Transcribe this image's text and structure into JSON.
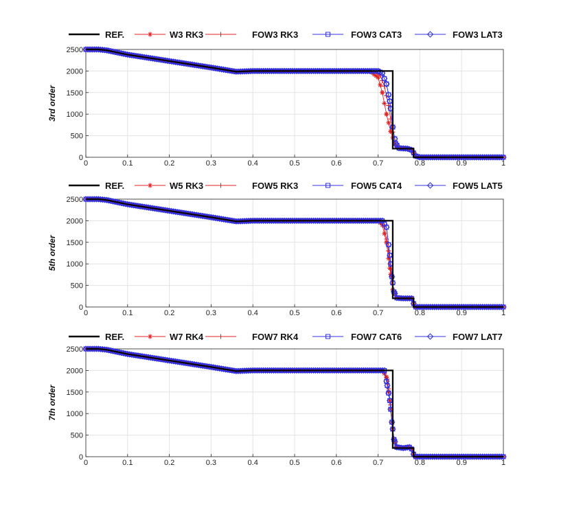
{
  "chart_data": [
    {
      "type": "line",
      "ylabel": "3rd order",
      "xlim": [
        0,
        1
      ],
      "ylim": [
        0,
        2500
      ],
      "xticks": [
        "0",
        "0.1",
        "0.2",
        "0.3",
        "0.4",
        "0.5",
        "0.6",
        "0.7",
        "0.8",
        "0.9",
        "1"
      ],
      "yticks": [
        "0",
        "500",
        "1000",
        "1500",
        "2000",
        "2500"
      ],
      "grid": true,
      "legend": "top, horizontal",
      "series": [
        {
          "name": "REF.",
          "color": "#000000",
          "marker": "none",
          "x": [
            0,
            0.03,
            0.05,
            0.1,
            0.2,
            0.3,
            0.36,
            0.4,
            0.6,
            0.735,
            0.735,
            0.785,
            0.785,
            1
          ],
          "y": [
            2500,
            2500,
            2480,
            2380,
            2230,
            2080,
            1985,
            2000,
            2000,
            2000,
            200,
            200,
            0,
            0
          ]
        },
        {
          "name": "W3 RK3",
          "color": "#e02020",
          "marker": "asterisk",
          "x": [
            0,
            0.03,
            0.05,
            0.1,
            0.2,
            0.3,
            0.36,
            0.4,
            0.6,
            0.68,
            0.7,
            0.71,
            0.72,
            0.73,
            0.74,
            0.75,
            0.77,
            0.78,
            0.79,
            0.8,
            1
          ],
          "y": [
            2500,
            2500,
            2480,
            2380,
            2230,
            2080,
            1985,
            2000,
            2000,
            2000,
            1850,
            1500,
            1000,
            600,
            300,
            210,
            200,
            170,
            30,
            0,
            0
          ]
        },
        {
          "name": "FOW3 RK3",
          "color": "#e02020",
          "marker": "plus",
          "x": [
            0,
            0.03,
            0.05,
            0.1,
            0.2,
            0.3,
            0.36,
            0.4,
            0.6,
            0.69,
            0.705,
            0.715,
            0.725,
            0.733,
            0.74,
            0.75,
            0.77,
            0.78,
            0.79,
            0.8,
            1
          ],
          "y": [
            2500,
            2500,
            2480,
            2380,
            2230,
            2080,
            1985,
            2000,
            2000,
            2000,
            1900,
            1650,
            1200,
            700,
            300,
            210,
            200,
            170,
            30,
            0,
            0
          ]
        },
        {
          "name": "FOW3 CAT3",
          "color": "#3030e0",
          "marker": "square",
          "x": [
            0,
            0.03,
            0.05,
            0.1,
            0.2,
            0.3,
            0.36,
            0.4,
            0.6,
            0.7,
            0.71,
            0.72,
            0.728,
            0.735,
            0.742,
            0.75,
            0.77,
            0.78,
            0.79,
            0.8,
            1
          ],
          "y": [
            2500,
            2500,
            2480,
            2380,
            2230,
            2080,
            1985,
            2000,
            2000,
            2000,
            1950,
            1700,
            1300,
            700,
            320,
            210,
            200,
            170,
            30,
            0,
            0
          ]
        },
        {
          "name": "FOW3 LAT3",
          "color": "#3030e0",
          "marker": "diamond",
          "x": [
            0,
            0.03,
            0.05,
            0.1,
            0.2,
            0.3,
            0.36,
            0.4,
            0.6,
            0.7,
            0.71,
            0.72,
            0.728,
            0.735,
            0.742,
            0.75,
            0.77,
            0.78,
            0.79,
            0.8,
            1
          ],
          "y": [
            2500,
            2500,
            2480,
            2380,
            2230,
            2080,
            1985,
            2000,
            2000,
            2000,
            1950,
            1700,
            1300,
            700,
            320,
            210,
            200,
            170,
            30,
            0,
            0
          ]
        }
      ]
    },
    {
      "type": "line",
      "ylabel": "5th order",
      "xlim": [
        0,
        1
      ],
      "ylim": [
        0,
        2500
      ],
      "xticks": [
        "0",
        "0.1",
        "0.2",
        "0.3",
        "0.4",
        "0.5",
        "0.6",
        "0.7",
        "0.8",
        "0.9",
        "1"
      ],
      "yticks": [
        "0",
        "500",
        "1000",
        "1500",
        "2000",
        "2500"
      ],
      "grid": true,
      "legend": "top, horizontal",
      "series": [
        {
          "name": "REF.",
          "color": "#000000",
          "marker": "none",
          "x": [
            0,
            0.03,
            0.05,
            0.1,
            0.2,
            0.3,
            0.36,
            0.4,
            0.6,
            0.735,
            0.735,
            0.785,
            0.785,
            1
          ],
          "y": [
            2500,
            2500,
            2480,
            2380,
            2230,
            2080,
            1985,
            2000,
            2000,
            2000,
            200,
            200,
            0,
            0
          ]
        },
        {
          "name": "W5 RK3",
          "color": "#e02020",
          "marker": "asterisk",
          "x": [
            0,
            0.03,
            0.05,
            0.1,
            0.2,
            0.3,
            0.36,
            0.4,
            0.6,
            0.7,
            0.71,
            0.72,
            0.728,
            0.735,
            0.745,
            0.76,
            0.78,
            0.785,
            0.79,
            1
          ],
          "y": [
            2500,
            2500,
            2480,
            2380,
            2230,
            2080,
            1985,
            2000,
            2000,
            2000,
            1900,
            1500,
            900,
            400,
            220,
            200,
            200,
            80,
            0,
            0
          ]
        },
        {
          "name": "FOW5 RK3",
          "color": "#e02020",
          "marker": "plus",
          "x": [
            0,
            0.03,
            0.05,
            0.1,
            0.2,
            0.3,
            0.36,
            0.4,
            0.6,
            0.705,
            0.715,
            0.725,
            0.732,
            0.738,
            0.745,
            0.76,
            0.78,
            0.785,
            0.79,
            1
          ],
          "y": [
            2500,
            2500,
            2480,
            2380,
            2230,
            2080,
            1985,
            2000,
            2000,
            2000,
            1850,
            1300,
            700,
            350,
            220,
            200,
            200,
            80,
            0,
            0
          ]
        },
        {
          "name": "FOW5 CAT4",
          "color": "#3030e0",
          "marker": "square",
          "x": [
            0,
            0.03,
            0.05,
            0.1,
            0.2,
            0.3,
            0.36,
            0.4,
            0.6,
            0.71,
            0.72,
            0.728,
            0.733,
            0.738,
            0.745,
            0.76,
            0.78,
            0.785,
            0.79,
            1
          ],
          "y": [
            2500,
            2500,
            2480,
            2380,
            2230,
            2080,
            1985,
            2000,
            2000,
            2000,
            1850,
            1200,
            700,
            350,
            210,
            200,
            200,
            80,
            0,
            0
          ]
        },
        {
          "name": "FOW5 LAT5",
          "color": "#3030e0",
          "marker": "diamond",
          "x": [
            0,
            0.03,
            0.05,
            0.1,
            0.2,
            0.3,
            0.36,
            0.4,
            0.6,
            0.71,
            0.72,
            0.728,
            0.733,
            0.738,
            0.745,
            0.76,
            0.78,
            0.785,
            0.79,
            1
          ],
          "y": [
            2500,
            2500,
            2480,
            2380,
            2230,
            2080,
            1985,
            2000,
            2000,
            2000,
            1850,
            1200,
            700,
            350,
            210,
            200,
            200,
            80,
            0,
            0
          ]
        }
      ]
    },
    {
      "type": "line",
      "ylabel": "7th order",
      "xlim": [
        0,
        1
      ],
      "ylim": [
        0,
        2500
      ],
      "xticks": [
        "0",
        "0.1",
        "0.2",
        "0.3",
        "0.4",
        "0.5",
        "0.6",
        "0.7",
        "0.8",
        "0.9",
        "1"
      ],
      "yticks": [
        "0",
        "500",
        "1000",
        "1500",
        "2000",
        "2500"
      ],
      "grid": true,
      "legend": "top, horizontal",
      "series": [
        {
          "name": "REF.",
          "color": "#000000",
          "marker": "none",
          "x": [
            0,
            0.03,
            0.05,
            0.1,
            0.2,
            0.3,
            0.36,
            0.4,
            0.6,
            0.735,
            0.735,
            0.785,
            0.785,
            1
          ],
          "y": [
            2500,
            2500,
            2480,
            2380,
            2230,
            2080,
            1985,
            2000,
            2000,
            2000,
            200,
            200,
            0,
            0
          ]
        },
        {
          "name": "W7 RK4",
          "color": "#e02020",
          "marker": "asterisk",
          "x": [
            0,
            0.03,
            0.05,
            0.1,
            0.2,
            0.3,
            0.36,
            0.4,
            0.6,
            0.71,
            0.72,
            0.728,
            0.733,
            0.738,
            0.745,
            0.76,
            0.775,
            0.78,
            0.785,
            0.79,
            1
          ],
          "y": [
            2500,
            2500,
            2480,
            2380,
            2230,
            2080,
            1985,
            2000,
            2000,
            2000,
            1850,
            1300,
            800,
            400,
            230,
            200,
            220,
            180,
            60,
            0,
            0
          ]
        },
        {
          "name": "FOW7 RK4",
          "color": "#e02020",
          "marker": "plus",
          "x": [
            0,
            0.03,
            0.05,
            0.1,
            0.2,
            0.3,
            0.36,
            0.4,
            0.6,
            0.712,
            0.722,
            0.73,
            0.735,
            0.74,
            0.745,
            0.76,
            0.775,
            0.78,
            0.785,
            0.79,
            1
          ],
          "y": [
            2500,
            2500,
            2480,
            2380,
            2230,
            2080,
            1985,
            2000,
            2000,
            2000,
            1800,
            1200,
            600,
            300,
            220,
            200,
            220,
            180,
            60,
            0,
            0
          ]
        },
        {
          "name": "FOW7 CAT6",
          "color": "#3030e0",
          "marker": "square",
          "x": [
            0,
            0.03,
            0.05,
            0.1,
            0.2,
            0.3,
            0.36,
            0.4,
            0.6,
            0.715,
            0.722,
            0.728,
            0.733,
            0.738,
            0.745,
            0.76,
            0.775,
            0.78,
            0.785,
            0.79,
            1
          ],
          "y": [
            2500,
            2500,
            2480,
            2380,
            2230,
            2080,
            1985,
            2000,
            2000,
            2000,
            1650,
            1300,
            800,
            400,
            220,
            200,
            220,
            180,
            60,
            0,
            0
          ]
        },
        {
          "name": "FOW7 LAT7",
          "color": "#3030e0",
          "marker": "diamond",
          "x": [
            0,
            0.03,
            0.05,
            0.1,
            0.2,
            0.3,
            0.36,
            0.4,
            0.6,
            0.715,
            0.722,
            0.728,
            0.733,
            0.738,
            0.745,
            0.76,
            0.775,
            0.78,
            0.785,
            0.79,
            1
          ],
          "y": [
            2500,
            2500,
            2480,
            2380,
            2230,
            2080,
            1985,
            2000,
            2000,
            2000,
            1650,
            1300,
            800,
            400,
            220,
            200,
            220,
            180,
            60,
            0,
            0
          ]
        }
      ]
    }
  ]
}
